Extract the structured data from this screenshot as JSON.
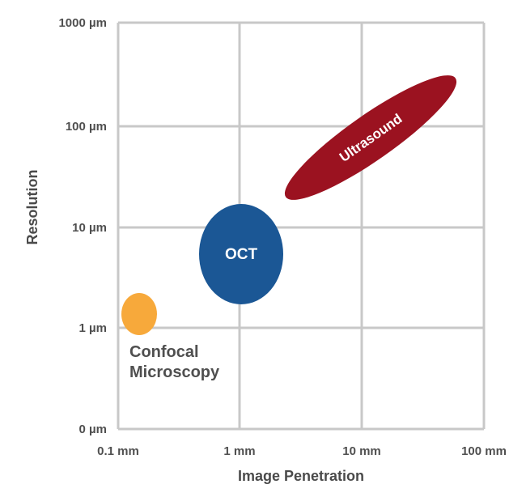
{
  "chart_data": {
    "type": "scatter",
    "title": "",
    "xlabel": "Image Penetration",
    "ylabel": "Resolution",
    "x_scale": "log",
    "x_ticks": [
      "0.1 mm",
      "1 mm",
      "10 mm",
      "100 mm"
    ],
    "x_tick_values_mm": [
      0.1,
      1,
      10,
      100
    ],
    "y_ticks": [
      "0 µm",
      "1 µm",
      "10 µm",
      "100 µm",
      "1000 µm"
    ],
    "y_tick_values_um": [
      0,
      1,
      10,
      100,
      1000
    ],
    "grid": true,
    "regions": [
      {
        "name": "Confocal Microscopy",
        "label_lines": [
          "Confocal",
          "Microscopy"
        ],
        "color": "#f7a93b",
        "penetration_mm": 0.15,
        "resolution_um": 1.4,
        "label_position": "below"
      },
      {
        "name": "OCT",
        "label_lines": [
          "OCT"
        ],
        "color": "#1b5795",
        "penetration_mm": 1.0,
        "resolution_um": 5.5,
        "label_position": "center"
      },
      {
        "name": "Ultrasound",
        "label_lines": [
          "Ultrasound"
        ],
        "color": "#9b1220",
        "penetration_mm": 12,
        "resolution_um": 75,
        "label_position": "center"
      }
    ]
  },
  "colors": {
    "grid": "#c8c8c8",
    "tick_text": "#4f4f4f",
    "axis_title": "#4a4a4a"
  }
}
